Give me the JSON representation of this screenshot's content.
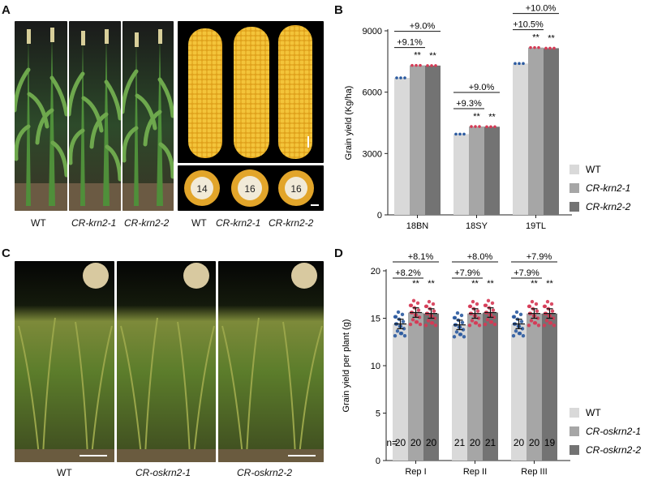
{
  "panels": {
    "a": "A",
    "b": "B",
    "c": "C",
    "d": "D"
  },
  "panel_a": {
    "plant_labels": [
      "WT",
      "CR-krn2-1",
      "CR-krn2-2"
    ],
    "ear_labels": [
      "WT",
      "CR-krn2-1",
      "CR-krn2-2"
    ],
    "row_numbers": [
      "14",
      "16",
      "16"
    ]
  },
  "panel_c": {
    "plant_labels": [
      "WT",
      "CR-oskrn2-1",
      "CR-oskrn2-2"
    ]
  },
  "chart_data": [
    {
      "type": "bar",
      "ylabel": "Grain yield (Kg/ha)",
      "ylim": [
        0,
        9000
      ],
      "yticks": [
        0,
        3000,
        6000,
        9000
      ],
      "categories": [
        "18BN",
        "18SY",
        "19TL"
      ],
      "series": [
        {
          "name": "WT",
          "values": [
            6700,
            3950,
            7400
          ],
          "color": "#d9d9d9"
        },
        {
          "name": "CR-krn2-1",
          "values": [
            7310,
            4320,
            8180
          ],
          "color": "#a6a6a6"
        },
        {
          "name": "CR-krn2-2",
          "values": [
            7300,
            4310,
            8150
          ],
          "color": "#737373"
        }
      ],
      "significance": [
        "**",
        "**"
      ],
      "brackets": [
        {
          "inner": "+9.1%",
          "outer": "+9.0%"
        },
        {
          "inner": "+9.3%",
          "outer": "+9.0%"
        },
        {
          "inner": "+10.5%",
          "outer": "+10.0%"
        }
      ],
      "legend": [
        "WT",
        "CR-krn2-1",
        "CR-krn2-2"
      ],
      "legend_position": "right"
    },
    {
      "type": "bar",
      "ylabel": "Grain yield per plant (g)",
      "ylim": [
        0,
        20
      ],
      "yticks": [
        0,
        5,
        10,
        15,
        20
      ],
      "categories": [
        "Rep I",
        "Rep II",
        "Rep III"
      ],
      "series": [
        {
          "name": "WT",
          "values": [
            14.4,
            14.3,
            14.4
          ],
          "errors": [
            0.5,
            0.5,
            0.5
          ],
          "color": "#d9d9d9"
        },
        {
          "name": "CR-oskrn2-1",
          "values": [
            15.6,
            15.5,
            15.5
          ],
          "errors": [
            0.5,
            0.5,
            0.5
          ],
          "color": "#a6a6a6"
        },
        {
          "name": "CR-oskrn2-2",
          "values": [
            15.5,
            15.6,
            15.5
          ],
          "errors": [
            0.5,
            0.5,
            0.5
          ],
          "color": "#737373"
        }
      ],
      "n_prefix": "n=",
      "n_values": [
        [
          "20",
          "20",
          "20"
        ],
        [
          "21",
          "20",
          "21"
        ],
        [
          "20",
          "20",
          "19"
        ]
      ],
      "significance": [
        "**",
        "**"
      ],
      "brackets": [
        {
          "inner": "+8.2%",
          "outer": "+8.1%"
        },
        {
          "inner": "+7.9%",
          "outer": "+8.0%"
        },
        {
          "inner": "+7.9%",
          "outer": "+7.9%"
        }
      ],
      "legend": [
        "WT",
        "CR-oskrn2-1",
        "CR-oskrn2-2"
      ],
      "legend_position": "right"
    }
  ]
}
